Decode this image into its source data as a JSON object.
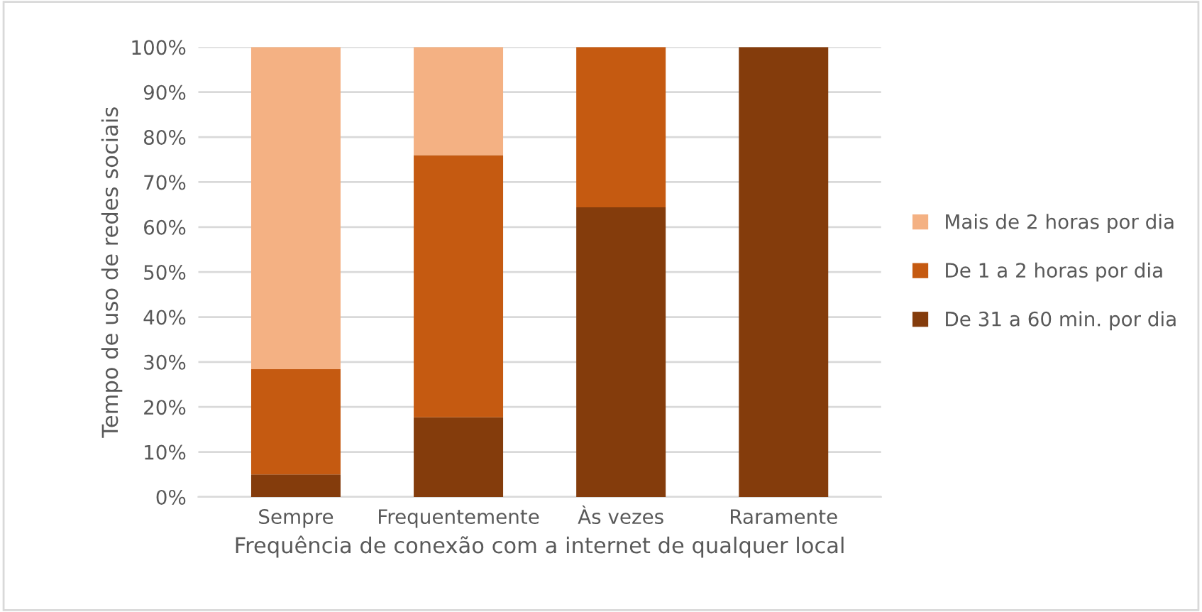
{
  "chart_data": {
    "type": "bar",
    "stacked": true,
    "xlabel": "Frequência de conexão com a internet de qualquer local",
    "ylabel": "Tempo de uso de redes sociais",
    "categories": [
      "Sempre",
      "Frequentemente",
      "Às vezes",
      "Raramente"
    ],
    "series": [
      {
        "name": "De 31 a 60 min. por dia",
        "color": "#843c0c",
        "values": [
          5,
          17.7,
          64.4,
          100
        ]
      },
      {
        "name": "De 1 a 2 horas por dia",
        "color": "#c55a11",
        "values": [
          23.4,
          58.3,
          35.6,
          0
        ]
      },
      {
        "name": "Mais de 2 horas por dia",
        "color": "#f4b183",
        "values": [
          71.6,
          24,
          0,
          0
        ]
      }
    ],
    "ylim": [
      0,
      100
    ],
    "yticks": [
      {
        "value": 0,
        "label": "0%"
      },
      {
        "value": 10,
        "label": "10%"
      },
      {
        "value": 20,
        "label": "20%"
      },
      {
        "value": 30,
        "label": "30%"
      },
      {
        "value": 40,
        "label": "40%"
      },
      {
        "value": 50,
        "label": "50%"
      },
      {
        "value": 60,
        "label": "60%"
      },
      {
        "value": 70,
        "label": "70%"
      },
      {
        "value": 80,
        "label": "80%"
      },
      {
        "value": 90,
        "label": "90%"
      },
      {
        "value": 100,
        "label": "100%"
      }
    ],
    "grid": "y",
    "legend": "right"
  }
}
